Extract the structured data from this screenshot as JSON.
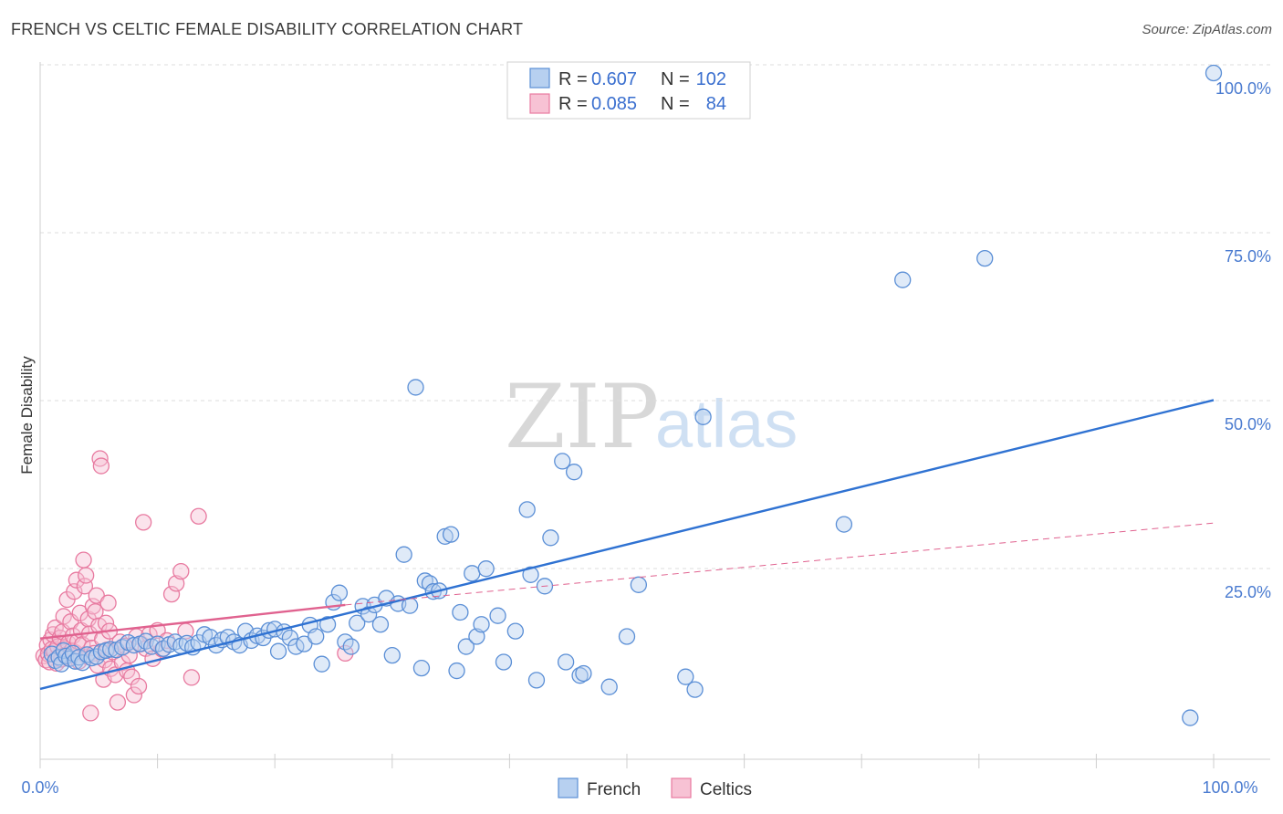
{
  "title": "FRENCH VS CELTIC FEMALE DISABILITY CORRELATION CHART",
  "source": "Source: ZipAtlas.com",
  "watermark": {
    "zip": "ZIP",
    "atlas": "atlas"
  },
  "colors": {
    "french": "#5b8fd6",
    "french_fill": "#b7d0f0",
    "french_line": "#2f72d2",
    "celtics": "#e87aa0",
    "celtics_fill": "#f7c2d4",
    "celtics_line": "#e0628f",
    "tick_label": "#4a7bd0",
    "grid": "#dcdcdc"
  },
  "legend": {
    "rows": [
      {
        "r_label": "R = ",
        "r_value": "0.607",
        "n_label": "N = ",
        "n_value": "102"
      },
      {
        "r_label": "R = ",
        "r_value": "0.085",
        "n_label": "N = ",
        "n_value": "84"
      }
    ]
  },
  "chart_data": {
    "type": "scatter",
    "title": "FRENCH VS CELTIC FEMALE DISABILITY CORRELATION CHART",
    "xlabel": "",
    "ylabel": "Female Disability",
    "xlim": [
      0,
      100
    ],
    "ylim": [
      0,
      100
    ],
    "x_tick_labels": [
      "0.0%",
      "100.0%"
    ],
    "y_ticks": [
      25,
      50,
      75,
      100
    ],
    "y_tick_labels": [
      "25.0%",
      "50.0%",
      "75.0%",
      "100.0%"
    ],
    "grid": "horizontal dashed",
    "legend_position": "top-center",
    "series": [
      {
        "name": "French",
        "trend": {
          "x0": 0,
          "y0": 8.3,
          "x1": 100,
          "y1": 51.3
        },
        "points": [
          [
            1.0,
            13.5
          ],
          [
            1.3,
            12.5
          ],
          [
            1.6,
            13.0
          ],
          [
            1.8,
            12.0
          ],
          [
            2.0,
            14.0
          ],
          [
            2.2,
            13.2
          ],
          [
            2.5,
            12.8
          ],
          [
            2.8,
            13.6
          ],
          [
            3.0,
            12.4
          ],
          [
            3.3,
            13.0
          ],
          [
            3.6,
            12.2
          ],
          [
            4.0,
            13.4
          ],
          [
            4.4,
            12.9
          ],
          [
            4.8,
            13.1
          ],
          [
            5.2,
            13.8
          ],
          [
            5.6,
            14.0
          ],
          [
            6.0,
            14.2
          ],
          [
            6.5,
            14.1
          ],
          [
            7.0,
            14.5
          ],
          [
            7.5,
            15.2
          ],
          [
            8.0,
            14.8
          ],
          [
            8.5,
            15.0
          ],
          [
            9.0,
            15.4
          ],
          [
            9.5,
            14.6
          ],
          [
            10.0,
            15.0
          ],
          [
            10.5,
            14.3
          ],
          [
            11.0,
            14.9
          ],
          [
            11.5,
            15.3
          ],
          [
            12.0,
            14.7
          ],
          [
            12.5,
            15.1
          ],
          [
            13.0,
            14.5
          ],
          [
            13.5,
            15.2
          ],
          [
            14.0,
            16.4
          ],
          [
            14.5,
            16.0
          ],
          [
            15.0,
            14.8
          ],
          [
            15.5,
            15.6
          ],
          [
            16.0,
            16.0
          ],
          [
            16.5,
            15.3
          ],
          [
            17.0,
            14.8
          ],
          [
            17.5,
            16.9
          ],
          [
            18.0,
            15.5
          ],
          [
            18.5,
            16.2
          ],
          [
            19.0,
            15.9
          ],
          [
            19.5,
            17.0
          ],
          [
            20.0,
            17.2
          ],
          [
            20.3,
            13.9
          ],
          [
            20.8,
            16.8
          ],
          [
            21.3,
            15.9
          ],
          [
            21.8,
            14.6
          ],
          [
            22.5,
            15.0
          ],
          [
            23.0,
            17.8
          ],
          [
            23.5,
            16.1
          ],
          [
            24.0,
            12.0
          ],
          [
            24.5,
            17.9
          ],
          [
            25.0,
            21.2
          ],
          [
            25.5,
            22.6
          ],
          [
            26.0,
            15.3
          ],
          [
            26.5,
            14.6
          ],
          [
            27.0,
            18.1
          ],
          [
            27.5,
            20.6
          ],
          [
            28.0,
            19.4
          ],
          [
            28.5,
            20.8
          ],
          [
            29.0,
            17.9
          ],
          [
            29.5,
            21.8
          ],
          [
            30.0,
            13.3
          ],
          [
            30.5,
            21.0
          ],
          [
            31.0,
            28.3
          ],
          [
            31.5,
            20.7
          ],
          [
            32.0,
            53.2
          ],
          [
            32.5,
            11.4
          ],
          [
            32.8,
            24.4
          ],
          [
            33.2,
            24.0
          ],
          [
            33.5,
            22.8
          ],
          [
            34.0,
            22.9
          ],
          [
            34.5,
            31.0
          ],
          [
            35.0,
            31.3
          ],
          [
            35.5,
            11.0
          ],
          [
            35.8,
            19.7
          ],
          [
            36.3,
            14.6
          ],
          [
            36.8,
            25.5
          ],
          [
            37.2,
            16.1
          ],
          [
            37.6,
            17.9
          ],
          [
            38.0,
            26.2
          ],
          [
            39.0,
            19.2
          ],
          [
            39.5,
            12.3
          ],
          [
            40.5,
            16.9
          ],
          [
            41.5,
            35.0
          ],
          [
            41.8,
            25.3
          ],
          [
            42.3,
            9.6
          ],
          [
            43.0,
            23.6
          ],
          [
            43.5,
            30.8
          ],
          [
            44.5,
            42.2
          ],
          [
            44.8,
            12.3
          ],
          [
            45.5,
            40.6
          ],
          [
            46.0,
            10.3
          ],
          [
            46.3,
            10.6
          ],
          [
            48.5,
            8.6
          ],
          [
            50.0,
            16.1
          ],
          [
            51.0,
            23.8
          ],
          [
            55.0,
            10.1
          ],
          [
            55.8,
            8.2
          ],
          [
            56.5,
            48.8
          ],
          [
            68.5,
            32.8
          ],
          [
            73.5,
            69.2
          ],
          [
            80.5,
            72.4
          ],
          [
            98.0,
            4.0
          ],
          [
            100.0,
            100.0
          ]
        ]
      },
      {
        "name": "Celtics",
        "trend": {
          "x0": 0,
          "y0": 15.8,
          "x1": 26,
          "y1": 20.8,
          "dashed_x1": 100,
          "dashed_y1": 33.0
        },
        "points": [
          [
            0.3,
            13.2
          ],
          [
            0.5,
            12.6
          ],
          [
            0.6,
            14.8
          ],
          [
            0.7,
            13.5
          ],
          [
            0.8,
            12.3
          ],
          [
            0.9,
            15.6
          ],
          [
            1.0,
            14.2
          ],
          [
            1.1,
            16.4
          ],
          [
            1.2,
            13.9
          ],
          [
            1.3,
            17.4
          ],
          [
            1.4,
            12.1
          ],
          [
            1.5,
            14.6
          ],
          [
            1.6,
            13.0
          ],
          [
            1.7,
            15.9
          ],
          [
            1.8,
            12.7
          ],
          [
            1.9,
            16.8
          ],
          [
            2.0,
            19.1
          ],
          [
            2.1,
            14.3
          ],
          [
            2.2,
            13.4
          ],
          [
            2.3,
            21.6
          ],
          [
            2.4,
            15.1
          ],
          [
            2.5,
            12.9
          ],
          [
            2.6,
            18.3
          ],
          [
            2.7,
            14.0
          ],
          [
            2.8,
            16.2
          ],
          [
            2.9,
            22.8
          ],
          [
            3.0,
            13.7
          ],
          [
            3.1,
            24.5
          ],
          [
            3.2,
            15.4
          ],
          [
            3.3,
            12.4
          ],
          [
            3.4,
            19.6
          ],
          [
            3.5,
            17.0
          ],
          [
            3.6,
            14.9
          ],
          [
            3.7,
            27.5
          ],
          [
            3.8,
            23.6
          ],
          [
            3.9,
            25.2
          ],
          [
            4.0,
            13.1
          ],
          [
            4.1,
            18.7
          ],
          [
            4.2,
            16.5
          ],
          [
            4.3,
            4.7
          ],
          [
            4.4,
            14.4
          ],
          [
            4.5,
            20.6
          ],
          [
            4.6,
            13.6
          ],
          [
            4.7,
            19.8
          ],
          [
            4.8,
            22.2
          ],
          [
            4.9,
            11.8
          ],
          [
            5.0,
            17.7
          ],
          [
            5.1,
            42.6
          ],
          [
            5.2,
            41.5
          ],
          [
            5.3,
            15.7
          ],
          [
            5.4,
            9.7
          ],
          [
            5.5,
            12.6
          ],
          [
            5.6,
            18.1
          ],
          [
            5.7,
            14.1
          ],
          [
            5.8,
            21.1
          ],
          [
            5.9,
            16.9
          ],
          [
            6.0,
            11.3
          ],
          [
            6.2,
            13.8
          ],
          [
            6.4,
            10.4
          ],
          [
            6.6,
            6.3
          ],
          [
            6.8,
            15.3
          ],
          [
            7.0,
            12.2
          ],
          [
            7.2,
            14.7
          ],
          [
            7.4,
            11.0
          ],
          [
            7.6,
            13.3
          ],
          [
            7.8,
            10.1
          ],
          [
            8.0,
            7.4
          ],
          [
            8.2,
            16.1
          ],
          [
            8.4,
            8.7
          ],
          [
            8.6,
            15.0
          ],
          [
            8.8,
            33.1
          ],
          [
            9.0,
            14.3
          ],
          [
            9.3,
            16.4
          ],
          [
            9.6,
            12.8
          ],
          [
            10.0,
            17.0
          ],
          [
            10.4,
            14.2
          ],
          [
            10.8,
            15.5
          ],
          [
            11.2,
            22.4
          ],
          [
            11.6,
            24.0
          ],
          [
            12.0,
            25.8
          ],
          [
            12.4,
            16.9
          ],
          [
            12.9,
            10.0
          ],
          [
            13.5,
            34.0
          ],
          [
            26.0,
            13.6
          ]
        ]
      }
    ]
  },
  "bottom_legend": [
    {
      "label": "French"
    },
    {
      "label": "Celtics"
    }
  ]
}
